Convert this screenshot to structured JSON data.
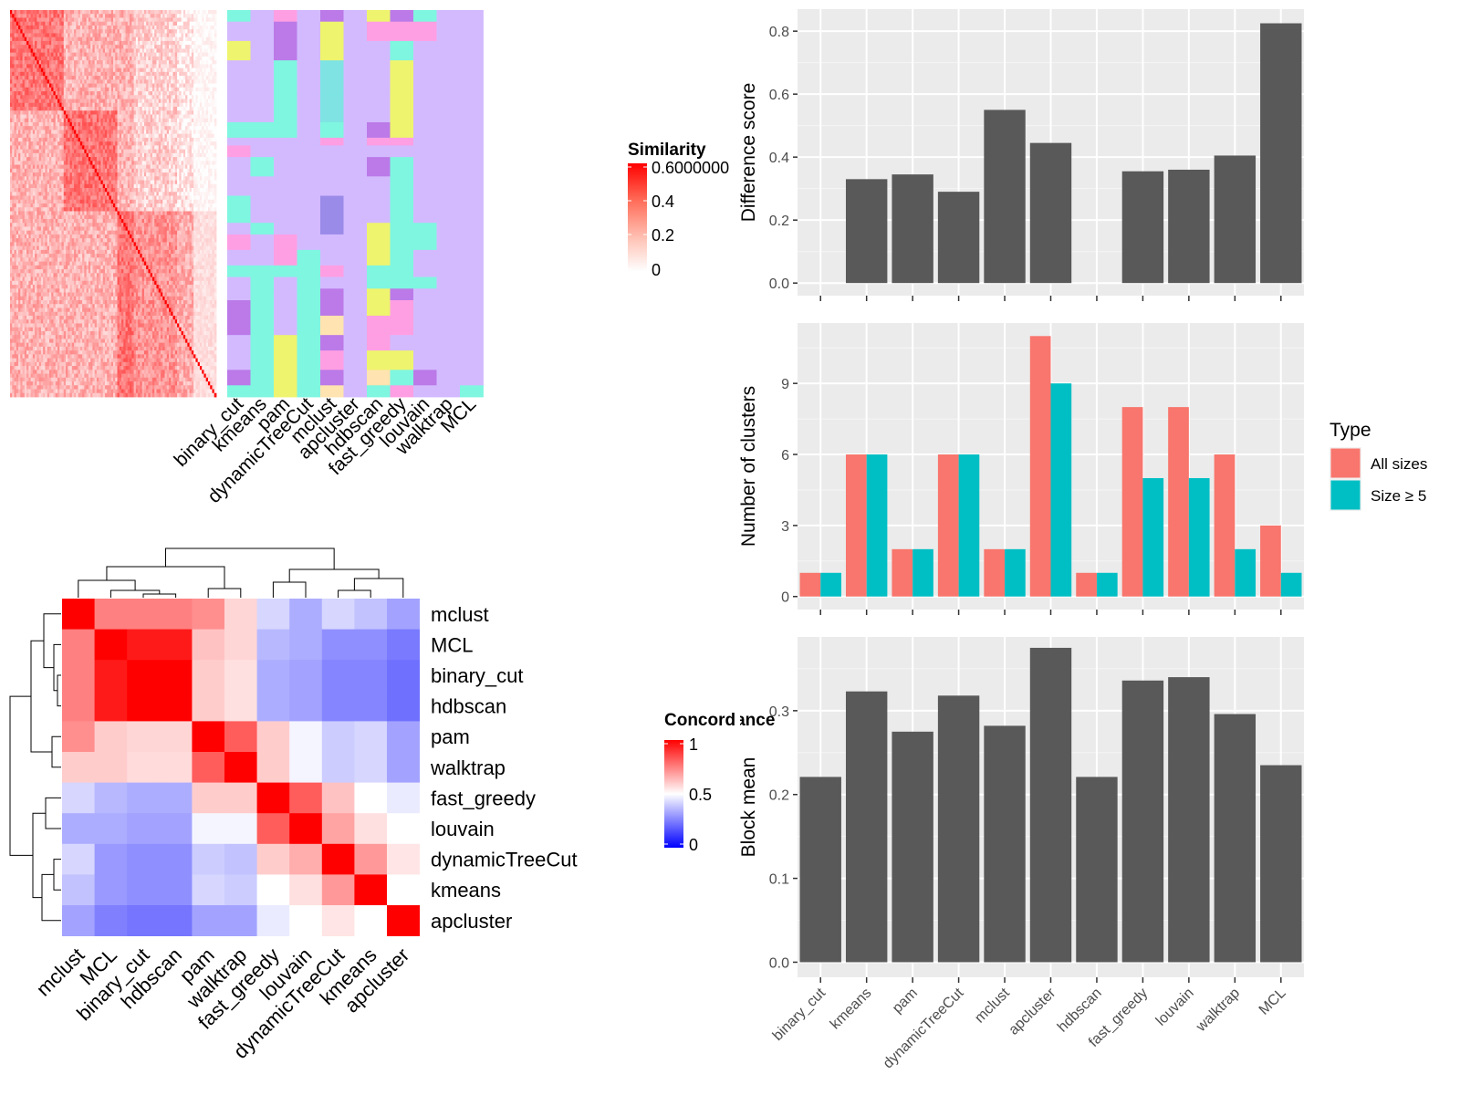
{
  "chart_data": [
    {
      "type": "heatmap",
      "legend_title": "Similarity",
      "legend_ticks": [
        "0.6000000",
        "0.4",
        "0.2",
        "0"
      ],
      "legend_colors": [
        "#ff0000",
        "#fefefe"
      ],
      "annotation_columns": [
        "binary_cut",
        "kmeans",
        "pam",
        "dynamicTreeCut",
        "mclust",
        "apcluster",
        "hdbscan",
        "fast_greedy",
        "louvain",
        "walktrap",
        "MCL"
      ]
    },
    {
      "type": "heatmap",
      "legend_title": "Concordance",
      "legend_ticks": [
        "1",
        "0.5",
        "0"
      ],
      "legend_colors": [
        "#ff0000",
        "#ffffff",
        "#0000ff"
      ],
      "rows": [
        "mclust",
        "MCL",
        "binary_cut",
        "hdbscan",
        "pam",
        "walktrap",
        "fast_greedy",
        "louvain",
        "dynamicTreeCut",
        "kmeans",
        "apcluster"
      ],
      "columns": [
        "mclust",
        "MCL",
        "binary_cut",
        "hdbscan",
        "pam",
        "walktrap",
        "fast_greedy",
        "louvain",
        "dynamicTreeCut",
        "kmeans",
        "apcluster"
      ],
      "values": [
        [
          1.0,
          0.75,
          0.75,
          0.75,
          0.72,
          0.58,
          0.42,
          0.34,
          0.42,
          0.38,
          0.32
        ],
        [
          0.75,
          1.0,
          0.95,
          0.95,
          0.62,
          0.58,
          0.36,
          0.34,
          0.28,
          0.28,
          0.24
        ],
        [
          0.75,
          0.95,
          1.0,
          1.0,
          0.6,
          0.56,
          0.34,
          0.32,
          0.26,
          0.26,
          0.22
        ],
        [
          0.75,
          0.95,
          1.0,
          1.0,
          0.6,
          0.56,
          0.34,
          0.32,
          0.26,
          0.26,
          0.22
        ],
        [
          0.72,
          0.6,
          0.58,
          0.58,
          1.0,
          0.82,
          0.6,
          0.48,
          0.4,
          0.42,
          0.32
        ],
        [
          0.6,
          0.6,
          0.57,
          0.57,
          0.82,
          1.0,
          0.6,
          0.48,
          0.4,
          0.42,
          0.32
        ],
        [
          0.42,
          0.36,
          0.34,
          0.34,
          0.6,
          0.6,
          1.0,
          0.82,
          0.62,
          0.5,
          0.46
        ],
        [
          0.34,
          0.34,
          0.32,
          0.32,
          0.48,
          0.48,
          0.82,
          1.0,
          0.68,
          0.56,
          0.5
        ],
        [
          0.42,
          0.3,
          0.28,
          0.28,
          0.4,
          0.38,
          0.6,
          0.66,
          1.0,
          0.7,
          0.55
        ],
        [
          0.38,
          0.3,
          0.28,
          0.28,
          0.42,
          0.4,
          0.5,
          0.56,
          0.7,
          1.0,
          0.5
        ],
        [
          0.32,
          0.25,
          0.23,
          0.23,
          0.32,
          0.32,
          0.46,
          0.5,
          0.55,
          0.5,
          1.0
        ]
      ]
    },
    {
      "type": "bar",
      "ylabel": "Difference score",
      "categories": [
        "binary_cut",
        "kmeans",
        "pam",
        "dynamicTreeCut",
        "mclust",
        "apcluster",
        "hdbscan",
        "fast_greedy",
        "louvain",
        "walktrap",
        "MCL"
      ],
      "values": [
        0,
        0.33,
        0.345,
        0.29,
        0.55,
        0.445,
        0,
        0.355,
        0.36,
        0.405,
        0.825
      ],
      "ylim": [
        -0.04,
        0.87
      ],
      "yticks": [
        "0.0",
        "0.2",
        "0.4",
        "0.6",
        "0.8"
      ],
      "bar_color": "#595959"
    },
    {
      "type": "bar",
      "ylabel": "Number of clusters",
      "categories": [
        "binary_cut",
        "kmeans",
        "pam",
        "dynamicTreeCut",
        "mclust",
        "apcluster",
        "hdbscan",
        "fast_greedy",
        "louvain",
        "walktrap",
        "MCL"
      ],
      "series": [
        {
          "name": "All sizes",
          "values": [
            1,
            6,
            2,
            6,
            2,
            11,
            1,
            8,
            8,
            6,
            3
          ],
          "color": "#F8766D"
        },
        {
          "name": "Size ≥ 5",
          "values": [
            1,
            6,
            2,
            6,
            2,
            9,
            1,
            5,
            5,
            2,
            1
          ],
          "color": "#00BFC4"
        }
      ],
      "ylim": [
        -0.55,
        11.55
      ],
      "yticks": [
        "0",
        "3",
        "6",
        "9"
      ],
      "legend_title": "Type",
      "legend_placement": "right"
    },
    {
      "type": "bar",
      "ylabel": "Block mean",
      "categories": [
        "binary_cut",
        "kmeans",
        "pam",
        "dynamicTreeCut",
        "mclust",
        "apcluster",
        "hdbscan",
        "fast_greedy",
        "louvain",
        "walktrap",
        "MCL"
      ],
      "values": [
        0.221,
        0.323,
        0.275,
        0.318,
        0.282,
        0.375,
        0.221,
        0.336,
        0.34,
        0.296,
        0.235
      ],
      "ylim": [
        -0.018,
        0.388
      ],
      "yticks": [
        "0.0",
        "0.1",
        "0.2",
        "0.3"
      ],
      "bar_color": "#595959"
    }
  ]
}
